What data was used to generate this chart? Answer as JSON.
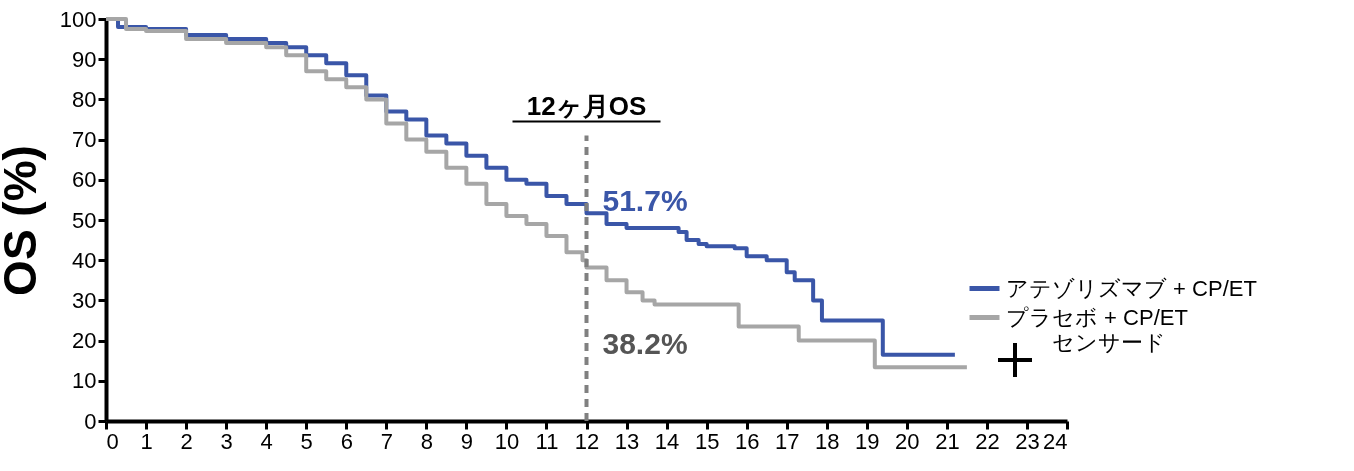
{
  "chart_data": {
    "type": "step",
    "ylabel": "OS (%)",
    "xlim": [
      0,
      24
    ],
    "xticks": [
      0,
      1,
      2,
      3,
      4,
      5,
      6,
      7,
      8,
      9,
      10,
      11,
      12,
      13,
      14,
      15,
      16,
      17,
      18,
      19,
      20,
      21,
      22,
      23,
      24
    ],
    "ylim": [
      0,
      100
    ],
    "yticks": [
      0,
      10,
      20,
      30,
      40,
      50,
      60,
      70,
      80,
      90,
      100
    ],
    "grid": false,
    "legend": "right",
    "line_style": "solid",
    "marker": "none",
    "series": [
      {
        "name": "アテゾリズマブ + CP/ET",
        "color": "#3a56a8",
        "x": [
          0,
          0.3,
          1,
          2,
          3,
          4,
          4.5,
          5,
          5.5,
          6,
          6.5,
          7,
          7.5,
          8,
          8.5,
          9,
          9.5,
          10,
          10.5,
          11,
          11.5,
          12,
          12.5,
          13,
          14,
          14.3,
          14.5,
          14.8,
          15,
          15.7,
          16,
          16.5,
          17,
          17.2,
          17.66,
          17.88,
          19.4,
          21.2
        ],
        "values": [
          100,
          98,
          97.5,
          96,
          95,
          94,
          93,
          91,
          89,
          86,
          81,
          77,
          75,
          71,
          69,
          66,
          63,
          60,
          59,
          56,
          54,
          51.7,
          49,
          48,
          48,
          47,
          45,
          44,
          43.5,
          43,
          41,
          40,
          37,
          35,
          30,
          25,
          16.5,
          16.5
        ]
      },
      {
        "name": "プラセボ + CP/ET",
        "color": "#a6a6a6",
        "x": [
          0,
          0.5,
          1,
          2,
          3,
          4,
          4.5,
          5,
          5.5,
          6,
          6.5,
          7,
          7.5,
          8,
          8.5,
          9,
          9.5,
          10,
          10.5,
          11,
          11.5,
          11.9,
          12,
          12.5,
          13,
          13.4,
          13.7,
          15.7,
          15.8,
          17.3,
          19.2,
          21.5
        ],
        "values": [
          100,
          97.5,
          97,
          95,
          94,
          93,
          91,
          87,
          85,
          83,
          80,
          74,
          70,
          67,
          63,
          59,
          54,
          51,
          49,
          46,
          42,
          40,
          38.2,
          35,
          32,
          30,
          29,
          29,
          23.5,
          20,
          13.4,
          13.4
        ]
      }
    ],
    "ref_lines": [
      {
        "axis": "x",
        "value": 12,
        "label": "12ヶ月OS",
        "color": "#808080",
        "line_style": "dashed"
      }
    ],
    "annotations": [
      {
        "text": "51.7%",
        "x": 12,
        "y": 51.7
      },
      {
        "text": "38.2%",
        "x": 12,
        "y": 38.2
      },
      "センサード"
    ]
  }
}
